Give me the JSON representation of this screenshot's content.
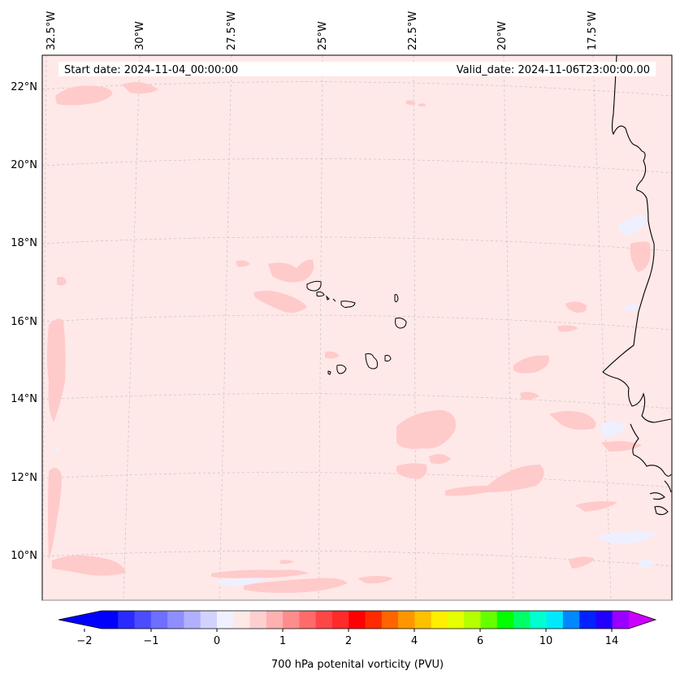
{
  "header": {
    "start_date": "Start date: 2024-11-04_00:00:00",
    "valid_date": "Valid_date: 2024-11-06T23:00:00.00"
  },
  "map": {
    "lon_labels": [
      "32.5°W",
      "30°W",
      "27.5°W",
      "25°W",
      "22.5°W",
      "20°W",
      "17.5°W"
    ],
    "lat_labels": [
      "22°N",
      "20°N",
      "18°N",
      "16°N",
      "14°N",
      "12°N",
      "10°N"
    ],
    "background_color": "#ffe8e8",
    "feature_color": "#ffcaca",
    "negative_color": "#eef0ff",
    "coastline_color": "#000000"
  },
  "colorbar": {
    "label": "700 hPa potenital vorticity (PVU)",
    "tick_labels": [
      "−2",
      "−1",
      "0",
      "1",
      "2",
      "4",
      "6",
      "10",
      "14"
    ],
    "colors": [
      "#0000ff",
      "#2a2aff",
      "#4c4cff",
      "#6e6eff",
      "#8e8eff",
      "#b0b0ff",
      "#d2d2ff",
      "#f0f0ff",
      "#ffe8e8",
      "#ffcfcf",
      "#ffb0b0",
      "#ff8c8c",
      "#ff6a6a",
      "#ff4646",
      "#ff2a2a",
      "#ff0000",
      "#ff2a00",
      "#ff6400",
      "#ff9600",
      "#ffc000",
      "#ffee00",
      "#e6ff00",
      "#b4ff00",
      "#66ff00",
      "#00ff00",
      "#00ff66",
      "#00ffcc",
      "#00e8ff",
      "#0088ff",
      "#0022ff",
      "#2200ff",
      "#9900ff"
    ],
    "under_color": "#0000ff",
    "over_color": "#cc00ff"
  }
}
